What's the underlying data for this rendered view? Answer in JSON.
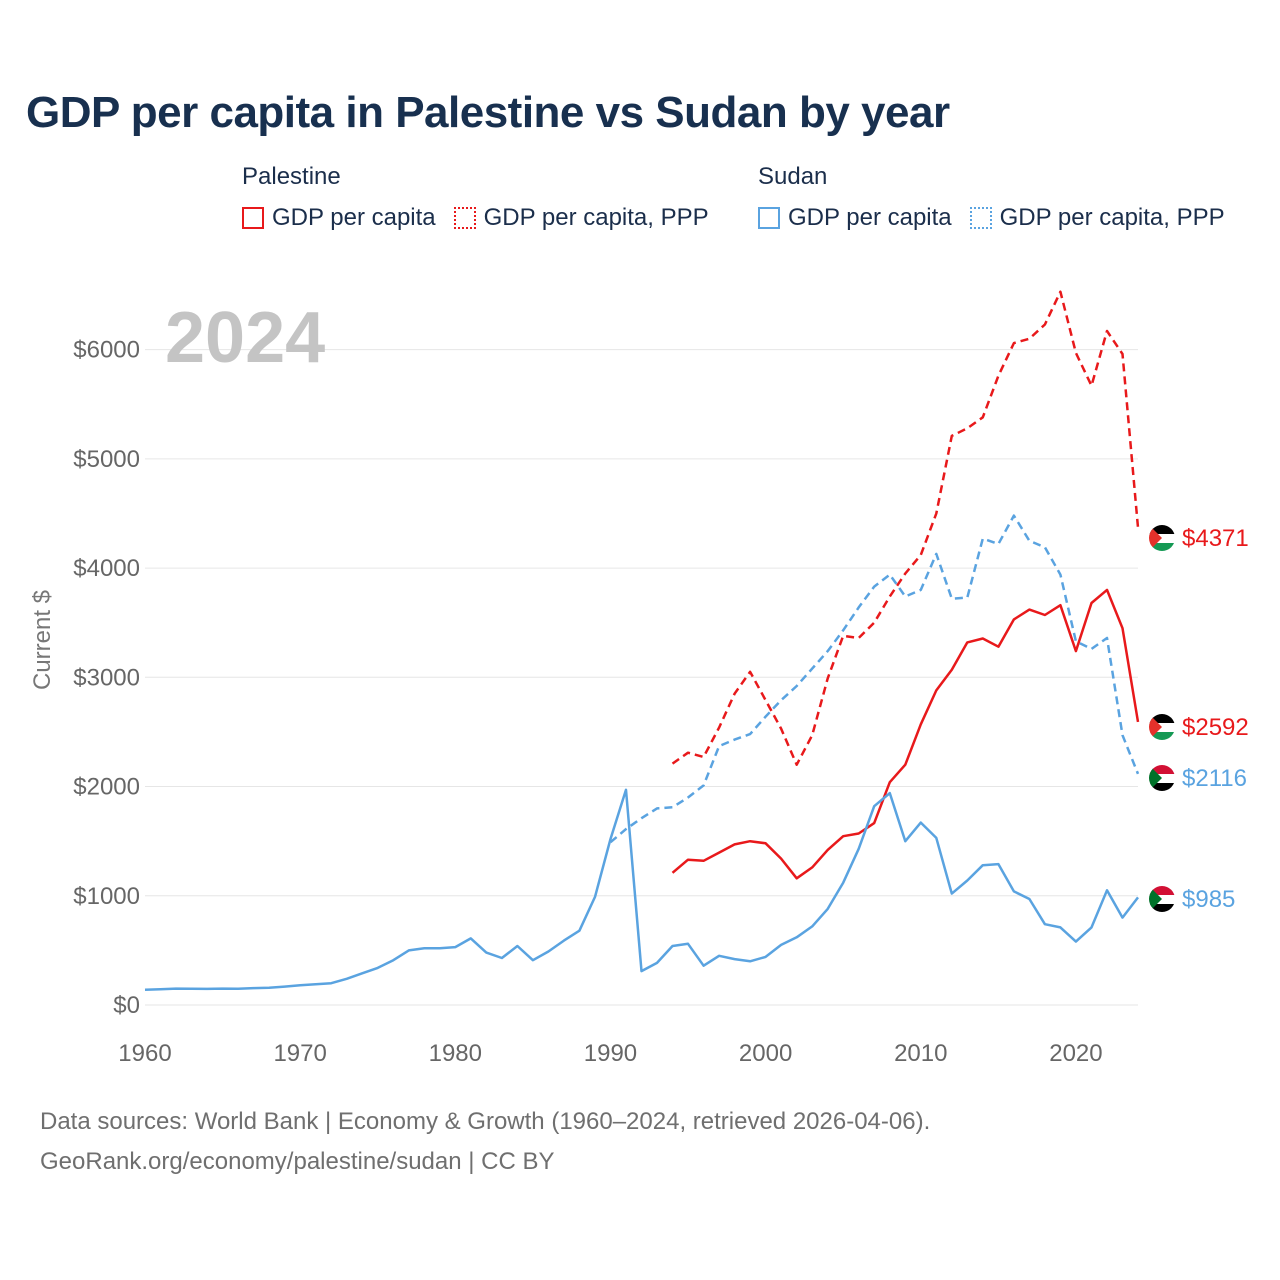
{
  "chart_data": {
    "type": "line",
    "title": "GDP per capita in Palestine vs Sudan by year",
    "year_watermark": "2024",
    "ylabel": "Current $",
    "xlabel": "",
    "xlim": [
      1960,
      2024
    ],
    "ylim": [
      0,
      6500
    ],
    "x_ticks": [
      1960,
      1970,
      1980,
      1990,
      2000,
      2010,
      2020
    ],
    "x_tick_labels": [
      "1960",
      "1970",
      "1980",
      "1990",
      "2000",
      "2010",
      "2020"
    ],
    "y_ticks": [
      0,
      1000,
      2000,
      3000,
      4000,
      5000,
      6000
    ],
    "y_tick_labels": [
      "$0",
      "$1000",
      "$2000",
      "$3000",
      "$4000",
      "$5000",
      "$6000"
    ],
    "grid": true,
    "legend_groups": [
      {
        "name": "Palestine",
        "items": [
          "GDP per capita",
          "GDP per capita, PPP"
        ]
      },
      {
        "name": "Sudan",
        "items": [
          "GDP per capita",
          "GDP per capita, PPP"
        ]
      }
    ],
    "series": [
      {
        "name": "Palestine GDP per capita",
        "country": "Palestine",
        "color": "#e8191b",
        "style": "solid",
        "end_label": "$2592",
        "x": [
          1994,
          1995,
          1996,
          1997,
          1998,
          1999,
          2000,
          2001,
          2002,
          2003,
          2004,
          2005,
          2006,
          2007,
          2008,
          2009,
          2010,
          2011,
          2012,
          2013,
          2014,
          2015,
          2016,
          2017,
          2018,
          2019,
          2020,
          2021,
          2022,
          2023,
          2024
        ],
        "y": [
          1210,
          1330,
          1320,
          1395,
          1470,
          1500,
          1480,
          1340,
          1160,
          1260,
          1420,
          1545,
          1570,
          1665,
          2040,
          2200,
          2570,
          2880,
          3070,
          3320,
          3355,
          3280,
          3530,
          3620,
          3570,
          3660,
          3240,
          3680,
          3800,
          3450,
          2592
        ]
      },
      {
        "name": "Palestine GDP per capita, PPP",
        "country": "Palestine",
        "color": "#e8191b",
        "style": "dashed",
        "end_label": "$4371",
        "x": [
          1994,
          1995,
          1996,
          1997,
          1998,
          1999,
          2000,
          2001,
          2002,
          2003,
          2004,
          2005,
          2006,
          2007,
          2008,
          2009,
          2010,
          2011,
          2012,
          2013,
          2014,
          2015,
          2016,
          2017,
          2018,
          2019,
          2020,
          2021,
          2022,
          2023,
          2024
        ],
        "y": [
          2210,
          2310,
          2270,
          2540,
          2850,
          3050,
          2790,
          2530,
          2200,
          2470,
          2990,
          3380,
          3360,
          3500,
          3740,
          3950,
          4120,
          4500,
          5210,
          5280,
          5380,
          5760,
          6060,
          6100,
          6230,
          6530,
          5970,
          5670,
          6170,
          5960,
          4371
        ]
      },
      {
        "name": "Sudan GDP per capita",
        "country": "Sudan",
        "color": "#5aa3e0",
        "style": "solid",
        "end_label": "$985",
        "x": [
          1960,
          1961,
          1962,
          1963,
          1964,
          1965,
          1966,
          1967,
          1968,
          1969,
          1970,
          1971,
          1972,
          1973,
          1974,
          1975,
          1976,
          1977,
          1978,
          1979,
          1980,
          1981,
          1982,
          1983,
          1984,
          1985,
          1986,
          1987,
          1988,
          1989,
          1990,
          1991,
          1992,
          1993,
          1994,
          1995,
          1996,
          1997,
          1998,
          1999,
          2000,
          2001,
          2002,
          2003,
          2004,
          2005,
          2006,
          2007,
          2008,
          2009,
          2010,
          2011,
          2012,
          2013,
          2014,
          2015,
          2016,
          2017,
          2018,
          2019,
          2020,
          2021,
          2022,
          2023,
          2024
        ],
        "y": [
          140,
          145,
          150,
          148,
          147,
          150,
          148,
          155,
          158,
          168,
          180,
          190,
          200,
          240,
          290,
          340,
          410,
          500,
          520,
          520,
          530,
          610,
          480,
          430,
          540,
          410,
          490,
          590,
          680,
          990,
          1520,
          1970,
          310,
          385,
          540,
          560,
          360,
          450,
          420,
          400,
          440,
          550,
          620,
          720,
          880,
          1120,
          1430,
          1820,
          1940,
          1500,
          1670,
          1530,
          1020,
          1140,
          1280,
          1290,
          1040,
          970,
          740,
          710,
          580,
          710,
          1050,
          800,
          985
        ]
      },
      {
        "name": "Sudan GDP per capita, PPP",
        "country": "Sudan",
        "color": "#5aa3e0",
        "style": "dashed",
        "end_label": "$2116",
        "x": [
          1990,
          1991,
          1992,
          1993,
          1994,
          1995,
          1996,
          1997,
          1998,
          1999,
          2000,
          2001,
          2002,
          2003,
          2004,
          2005,
          2006,
          2007,
          2008,
          2009,
          2010,
          2011,
          2012,
          2013,
          2014,
          2015,
          2016,
          2017,
          2018,
          2019,
          2020,
          2021,
          2022,
          2023,
          2024
        ],
        "y": [
          1490,
          1610,
          1710,
          1800,
          1810,
          1900,
          2010,
          2370,
          2430,
          2480,
          2640,
          2790,
          2920,
          3080,
          3240,
          3430,
          3640,
          3830,
          3940,
          3740,
          3800,
          4130,
          3720,
          3730,
          4270,
          4220,
          4480,
          4250,
          4190,
          3940,
          3330,
          3260,
          3360,
          2470,
          2116
        ]
      }
    ]
  },
  "sources": {
    "line1": "Data sources: World Bank | Economy & Growth (1960–2024, retrieved 2026-04-06).",
    "line2": "GeoRank.org/economy/palestine/sudan | CC BY"
  }
}
